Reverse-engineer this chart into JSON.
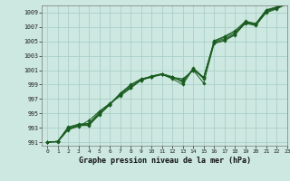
{
  "title": "Graphe pression niveau de la mer (hPa)",
  "background_color": "#cce8e0",
  "grid_color": "#aacfc8",
  "line_color": "#1a5c20",
  "marker_color": "#1a5c20",
  "xlim": [
    -0.5,
    23
  ],
  "ylim": [
    990.5,
    1010.0
  ],
  "yticks": [
    991,
    993,
    995,
    997,
    999,
    1001,
    1003,
    1005,
    1007,
    1009
  ],
  "xticks": [
    0,
    1,
    2,
    3,
    4,
    5,
    6,
    7,
    8,
    9,
    10,
    11,
    12,
    13,
    14,
    15,
    16,
    17,
    18,
    19,
    20,
    21,
    22,
    23
  ],
  "series": [
    [
      991.0,
      991.1,
      992.8,
      993.3,
      993.3,
      994.9,
      996.3,
      997.8,
      999.0,
      999.8,
      1000.1,
      1000.5,
      1000.0,
      999.8,
      1001.0,
      1000.0,
      1004.8,
      1005.2,
      1006.0,
      1007.5,
      1007.2,
      1009.0,
      1009.5,
      1010.2
    ],
    [
      991.0,
      991.1,
      992.9,
      993.3,
      993.4,
      994.8,
      996.2,
      997.7,
      998.9,
      999.7,
      1000.0,
      1000.4,
      999.9,
      999.6,
      1001.0,
      999.2,
      1004.7,
      1005.1,
      1005.9,
      1007.6,
      1007.3,
      1009.1,
      1009.6,
      1010.3
    ],
    [
      991.0,
      991.1,
      993.0,
      993.4,
      993.5,
      995.0,
      996.2,
      997.6,
      998.7,
      999.6,
      1000.1,
      1000.4,
      1000.0,
      999.5,
      1001.1,
      999.9,
      1004.9,
      1005.4,
      1006.1,
      1007.7,
      1007.4,
      1009.2,
      1009.7,
      1010.3
    ],
    [
      991.0,
      991.1,
      993.1,
      993.5,
      993.6,
      995.2,
      996.3,
      997.6,
      998.6,
      999.7,
      1000.2,
      1000.5,
      1000.1,
      999.3,
      1001.3,
      1000.0,
      1005.0,
      1005.6,
      1006.3,
      1007.7,
      1007.4,
      1009.3,
      1009.7,
      1010.4
    ],
    [
      991.0,
      991.0,
      992.7,
      993.2,
      994.0,
      995.3,
      996.4,
      997.4,
      998.5,
      999.6,
      1000.1,
      1000.4,
      999.8,
      999.0,
      1001.2,
      999.8,
      1005.1,
      1005.7,
      1006.5,
      1007.8,
      1007.5,
      1009.4,
      1009.8,
      1010.4
    ]
  ]
}
